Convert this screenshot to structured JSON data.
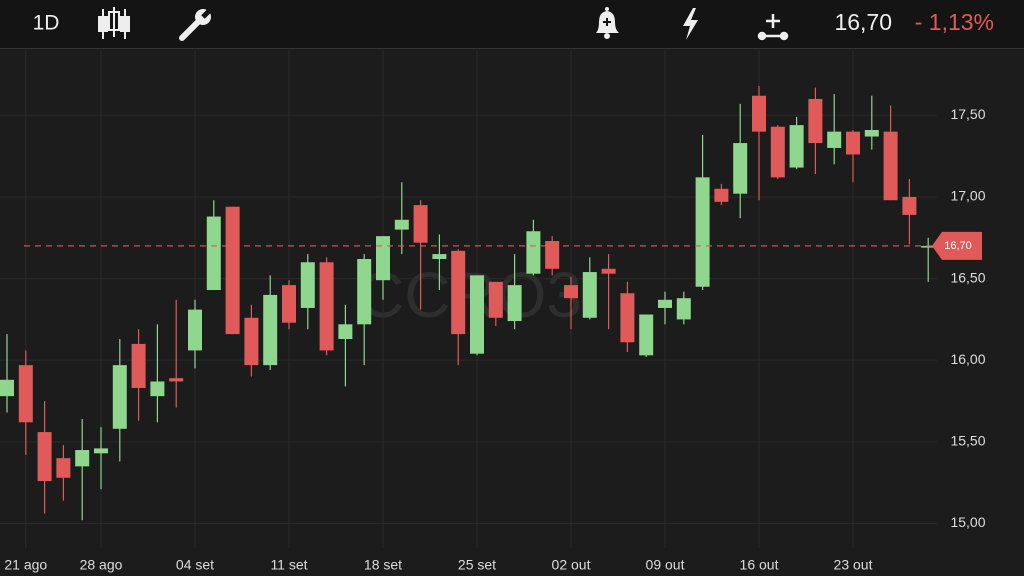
{
  "header": {
    "interval": "1D",
    "price": "16,70",
    "change": "- 1,13%"
  },
  "chart_data": {
    "type": "candlestick",
    "watermark": "CCRO3",
    "categories": [
      null,
      "21 ago",
      null,
      null,
      null,
      "28 ago",
      null,
      null,
      null,
      null,
      "04 set",
      null,
      null,
      null,
      null,
      "11 set",
      null,
      null,
      null,
      null,
      "18 set",
      null,
      null,
      null,
      null,
      "25 set",
      null,
      null,
      null,
      null,
      "02 out",
      null,
      null,
      null,
      null,
      "09 out",
      null,
      null,
      null,
      null,
      "16 out",
      null,
      null,
      null,
      null,
      "23 out",
      null,
      null,
      null,
      null
    ],
    "open": [
      15.78,
      15.97,
      15.56,
      15.4,
      15.35,
      15.43,
      15.58,
      16.1,
      15.78,
      15.89,
      16.06,
      16.43,
      16.94,
      16.26,
      15.97,
      16.46,
      16.32,
      16.6,
      16.13,
      16.22,
      16.49,
      16.8,
      16.95,
      16.62,
      16.67,
      16.04,
      16.48,
      16.24,
      16.53,
      16.73,
      16.46,
      16.26,
      16.56,
      16.41,
      16.03,
      16.32,
      16.25,
      16.45,
      17.05,
      17.02,
      17.62,
      17.43,
      17.18,
      17.6,
      17.3,
      17.4,
      17.37,
      17.4,
      17.0,
      16.69
    ],
    "high": [
      16.16,
      16.06,
      15.75,
      15.48,
      15.64,
      15.59,
      16.13,
      16.19,
      16.22,
      16.37,
      16.37,
      16.98,
      16.94,
      16.34,
      16.52,
      16.49,
      16.65,
      16.63,
      16.34,
      16.65,
      16.76,
      17.09,
      16.98,
      16.77,
      16.68,
      16.52,
      16.48,
      16.65,
      16.86,
      16.76,
      16.51,
      16.63,
      16.65,
      16.48,
      16.28,
      16.42,
      16.42,
      17.38,
      17.08,
      17.57,
      17.68,
      17.44,
      17.49,
      17.67,
      17.63,
      17.41,
      17.62,
      17.56,
      17.11,
      16.75
    ],
    "low": [
      15.68,
      15.42,
      15.06,
      15.14,
      15.02,
      15.21,
      15.38,
      15.63,
      15.62,
      15.71,
      15.95,
      16.43,
      16.16,
      15.9,
      15.94,
      16.19,
      16.19,
      16.03,
      15.84,
      15.97,
      16.37,
      16.65,
      16.31,
      16.43,
      15.97,
      16.03,
      16.21,
      16.19,
      16.52,
      16.52,
      16.19,
      16.25,
      16.19,
      16.05,
      16.02,
      16.22,
      16.22,
      16.43,
      16.95,
      16.87,
      16.98,
      17.11,
      17.17,
      17.14,
      17.2,
      17.09,
      17.29,
      16.98,
      16.71,
      16.48
    ],
    "close": [
      15.88,
      15.62,
      15.26,
      15.28,
      15.45,
      15.46,
      15.97,
      15.83,
      15.87,
      15.87,
      16.31,
      16.88,
      16.16,
      15.97,
      16.4,
      16.23,
      16.6,
      16.06,
      16.22,
      16.62,
      16.76,
      16.86,
      16.72,
      16.65,
      16.16,
      16.52,
      16.26,
      16.46,
      16.79,
      16.56,
      16.38,
      16.54,
      16.53,
      16.11,
      16.28,
      16.37,
      16.38,
      17.12,
      16.97,
      17.33,
      17.4,
      17.12,
      17.44,
      17.33,
      17.4,
      17.26,
      17.41,
      16.98,
      16.89,
      16.7
    ],
    "up_color": "#8fd68f",
    "down_color": "#e05a5a",
    "ylim": [
      14.85,
      17.9
    ],
    "yticks": [
      {
        "value": 15,
        "label": "15,00"
      },
      {
        "value": 15.5,
        "label": "15,50"
      },
      {
        "value": 16,
        "label": "16,00"
      },
      {
        "value": 16.5,
        "label": "16,50"
      },
      {
        "value": 17,
        "label": "17,00"
      },
      {
        "value": 17.5,
        "label": "17,50"
      }
    ],
    "last_price": {
      "value": 16.7,
      "label": "16,70"
    },
    "grid": true
  }
}
